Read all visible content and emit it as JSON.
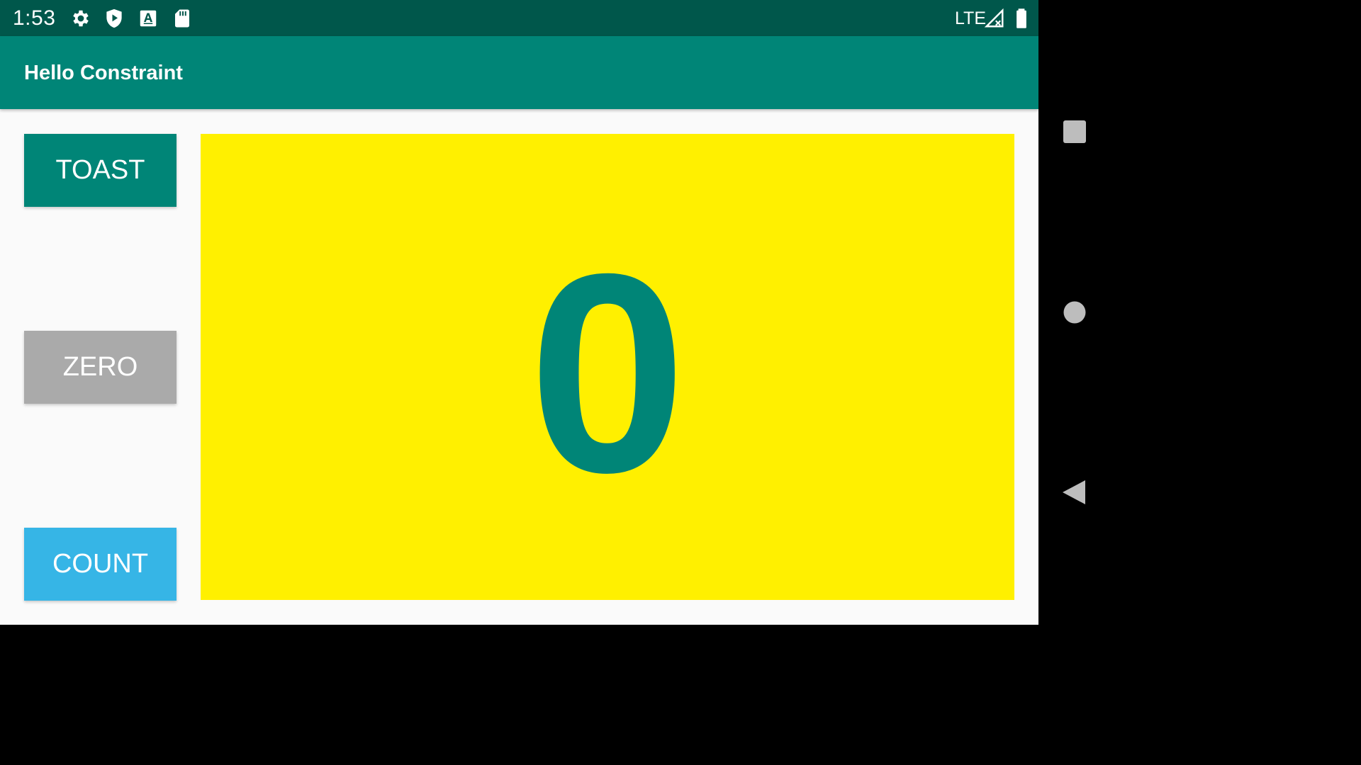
{
  "status_bar": {
    "time": "1:53",
    "network": "LTE",
    "icons": [
      "gear-icon",
      "play-shield-icon",
      "font-a-icon",
      "sd-card-icon",
      "signal-icon",
      "battery-icon"
    ]
  },
  "app_bar": {
    "title": "Hello Constraint"
  },
  "buttons": {
    "toast_label": "TOAST",
    "zero_label": "ZERO",
    "count_label": "COUNT"
  },
  "counter": {
    "value": "0"
  },
  "colors": {
    "primary": "#008577",
    "primary_dark": "#00574b",
    "zero_button": "#aaaaaa",
    "count_button": "#36b5e6",
    "panel_background": "#fff000"
  },
  "navigation": {
    "icons": [
      "recents-icon",
      "home-icon",
      "back-icon"
    ]
  }
}
